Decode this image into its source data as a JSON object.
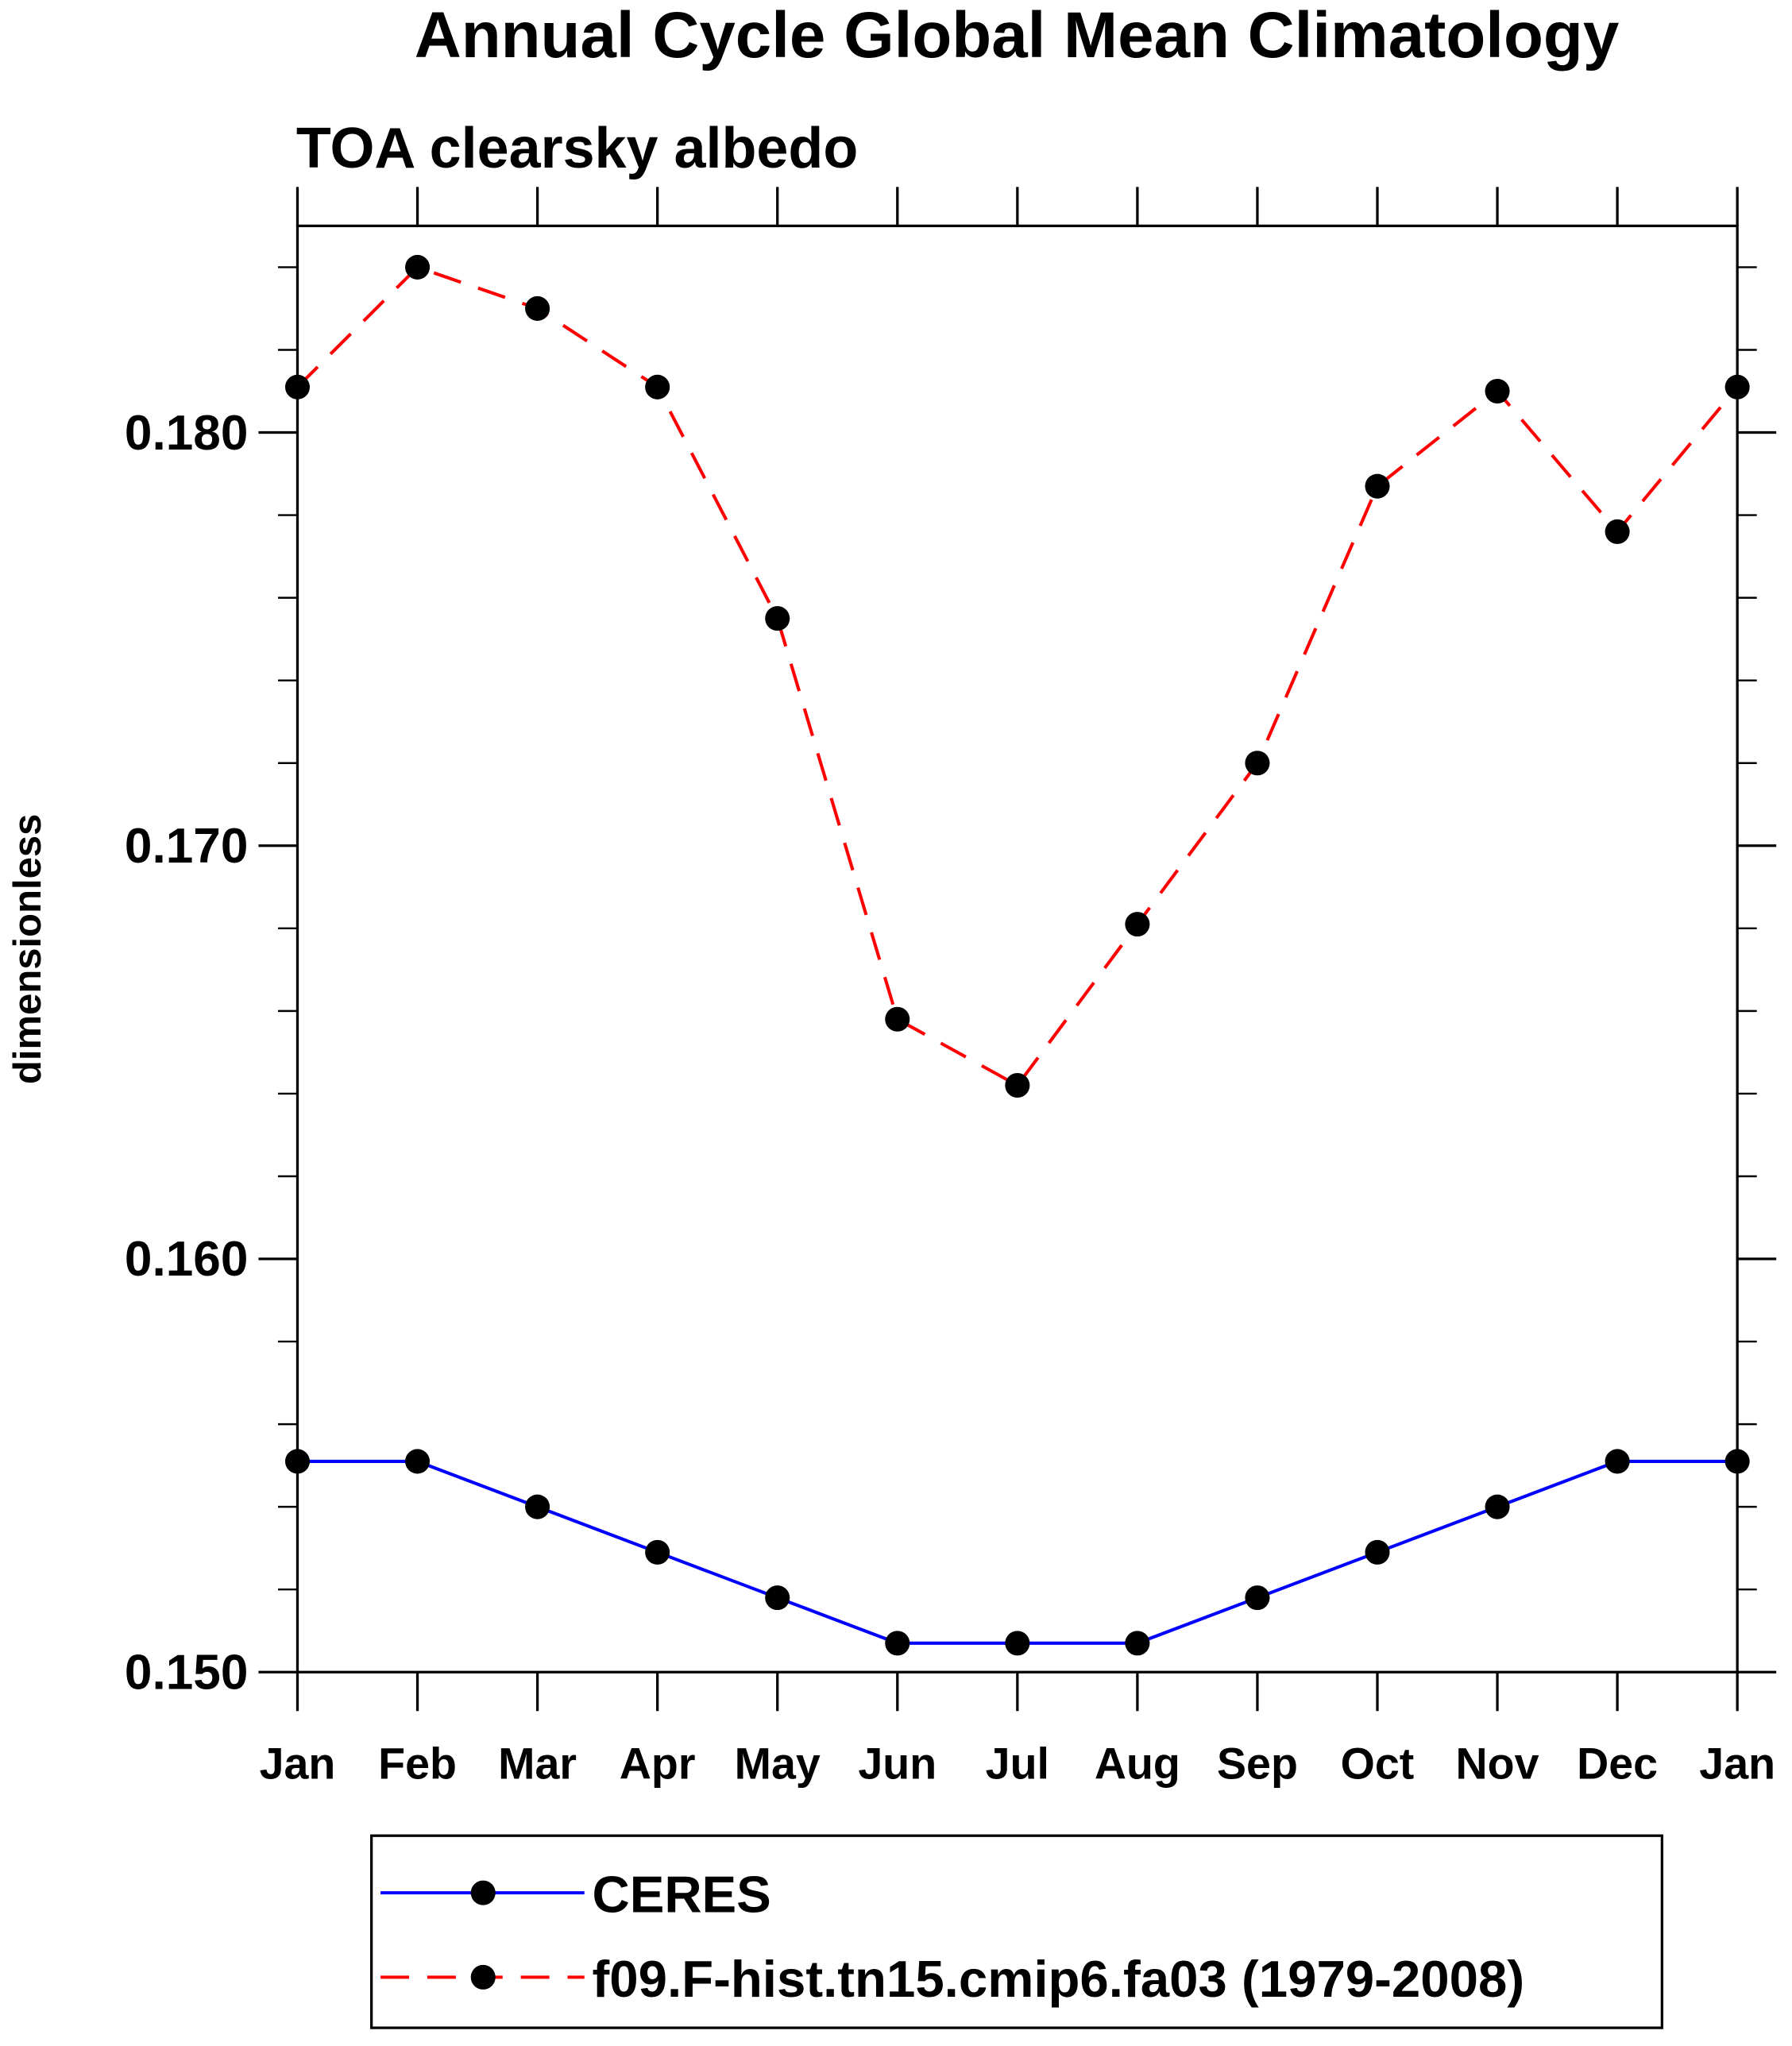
{
  "chart_data": {
    "type": "line",
    "title": "Annual Cycle Global Mean Climatology",
    "subtitle": "TOA clearsky albedo",
    "xlabel": "",
    "ylabel": "dimensionless",
    "categories": [
      "Jan",
      "Feb",
      "Mar",
      "Apr",
      "May",
      "Jun",
      "Jul",
      "Aug",
      "Sep",
      "Oct",
      "Nov",
      "Dec",
      "Jan"
    ],
    "ylim": [
      0.15,
      0.185
    ],
    "yticks": [
      0.15,
      0.16,
      0.17,
      0.18
    ],
    "ytick_labels": [
      "0.150",
      "0.160",
      "0.170",
      "0.180"
    ],
    "yminor_step": 0.002,
    "grid": false,
    "legend_position": "bottom",
    "series": [
      {
        "name": "CERES",
        "color": "#0000ff",
        "dash": "solid",
        "values": [
          0.1551,
          0.1551,
          0.154,
          0.1529,
          0.1518,
          0.1507,
          0.1507,
          0.1507,
          0.1518,
          0.1529,
          0.154,
          0.1551,
          0.1551
        ]
      },
      {
        "name": "f09.F-hist.tn15.cmip6.fa03 (1979-2008)",
        "color": "#ff0000",
        "dash": "dashed",
        "values": [
          0.1811,
          0.184,
          0.183,
          0.1811,
          0.1755,
          0.1658,
          0.1642,
          0.1681,
          0.172,
          0.1787,
          0.181,
          0.1776,
          0.1811
        ]
      }
    ]
  }
}
